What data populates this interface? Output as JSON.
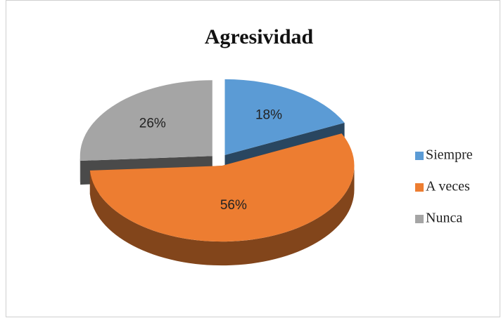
{
  "chart_data": {
    "type": "pie",
    "title": "Agresividad",
    "categories": [
      "Siempre",
      "A veces",
      "Nunca"
    ],
    "values": [
      18,
      56,
      26
    ],
    "value_labels": [
      "18%",
      "56%",
      "26%"
    ],
    "colors": [
      "#5b9bd5",
      "#ed7d31",
      "#a5a5a5"
    ],
    "legend": "right"
  }
}
